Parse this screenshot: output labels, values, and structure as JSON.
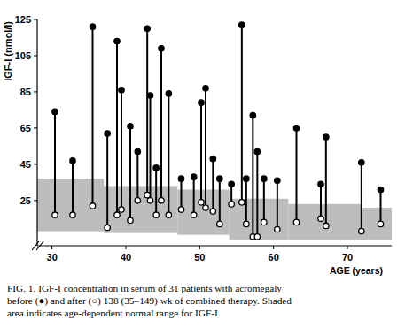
{
  "chart_data": {
    "type": "dumbbell",
    "y_label": "IGF-I (nmol/l)",
    "x_label": "AGE (years)",
    "caption": [
      "FIG. 1. IGF-I concentration in serum of 31 patients with acromegaly",
      "before (●) and after (○) 138 (35–149) wk of combined therapy. Shaded",
      "area indicates age-dependent normal range for IGF-I."
    ],
    "x": [
      30.4,
      32.8,
      35.5,
      37.5,
      38.8,
      39.4,
      40.6,
      41.6,
      42.9,
      43.3,
      44.1,
      44.8,
      45.8,
      47.5,
      49.2,
      50.2,
      50.8,
      51.8,
      52.7,
      54.3,
      55.7,
      56.3,
      57.2,
      57.8,
      58.7,
      60.5,
      63.1,
      66.4,
      67.1,
      71.9,
      74.5
    ],
    "series": [
      {
        "marker": "filled",
        "color": "#000000",
        "values": [
          74,
          47,
          121,
          62,
          113,
          86,
          66,
          52,
          120,
          83,
          43,
          109,
          84,
          37,
          38,
          79,
          87,
          48,
          37,
          34,
          122,
          37,
          72,
          52,
          37,
          36,
          65,
          34,
          60,
          46,
          31
        ]
      },
      {
        "marker": "open",
        "color": "#000000",
        "values": [
          17,
          17,
          22,
          10,
          17,
          20,
          14,
          25,
          28,
          25,
          17,
          25,
          17,
          20,
          17,
          24,
          21,
          19,
          12,
          23,
          24,
          12,
          5,
          5,
          13,
          9,
          13,
          15,
          11,
          8,
          12
        ]
      }
    ],
    "normal_range": {
      "color": "#bdbdbd",
      "x": [
        28,
        37,
        47,
        54,
        62,
        72,
        76
      ],
      "lower": [
        8,
        7,
        6,
        3,
        3,
        3
      ],
      "upper": [
        37,
        33,
        31,
        26,
        23,
        21
      ]
    },
    "xlim": [
      28,
      76
    ],
    "ylim": [
      0,
      125
    ],
    "xticks": [
      30,
      40,
      50,
      60,
      70
    ],
    "yticks": [
      25,
      45,
      65,
      85,
      105,
      125
    ],
    "grid": false
  }
}
